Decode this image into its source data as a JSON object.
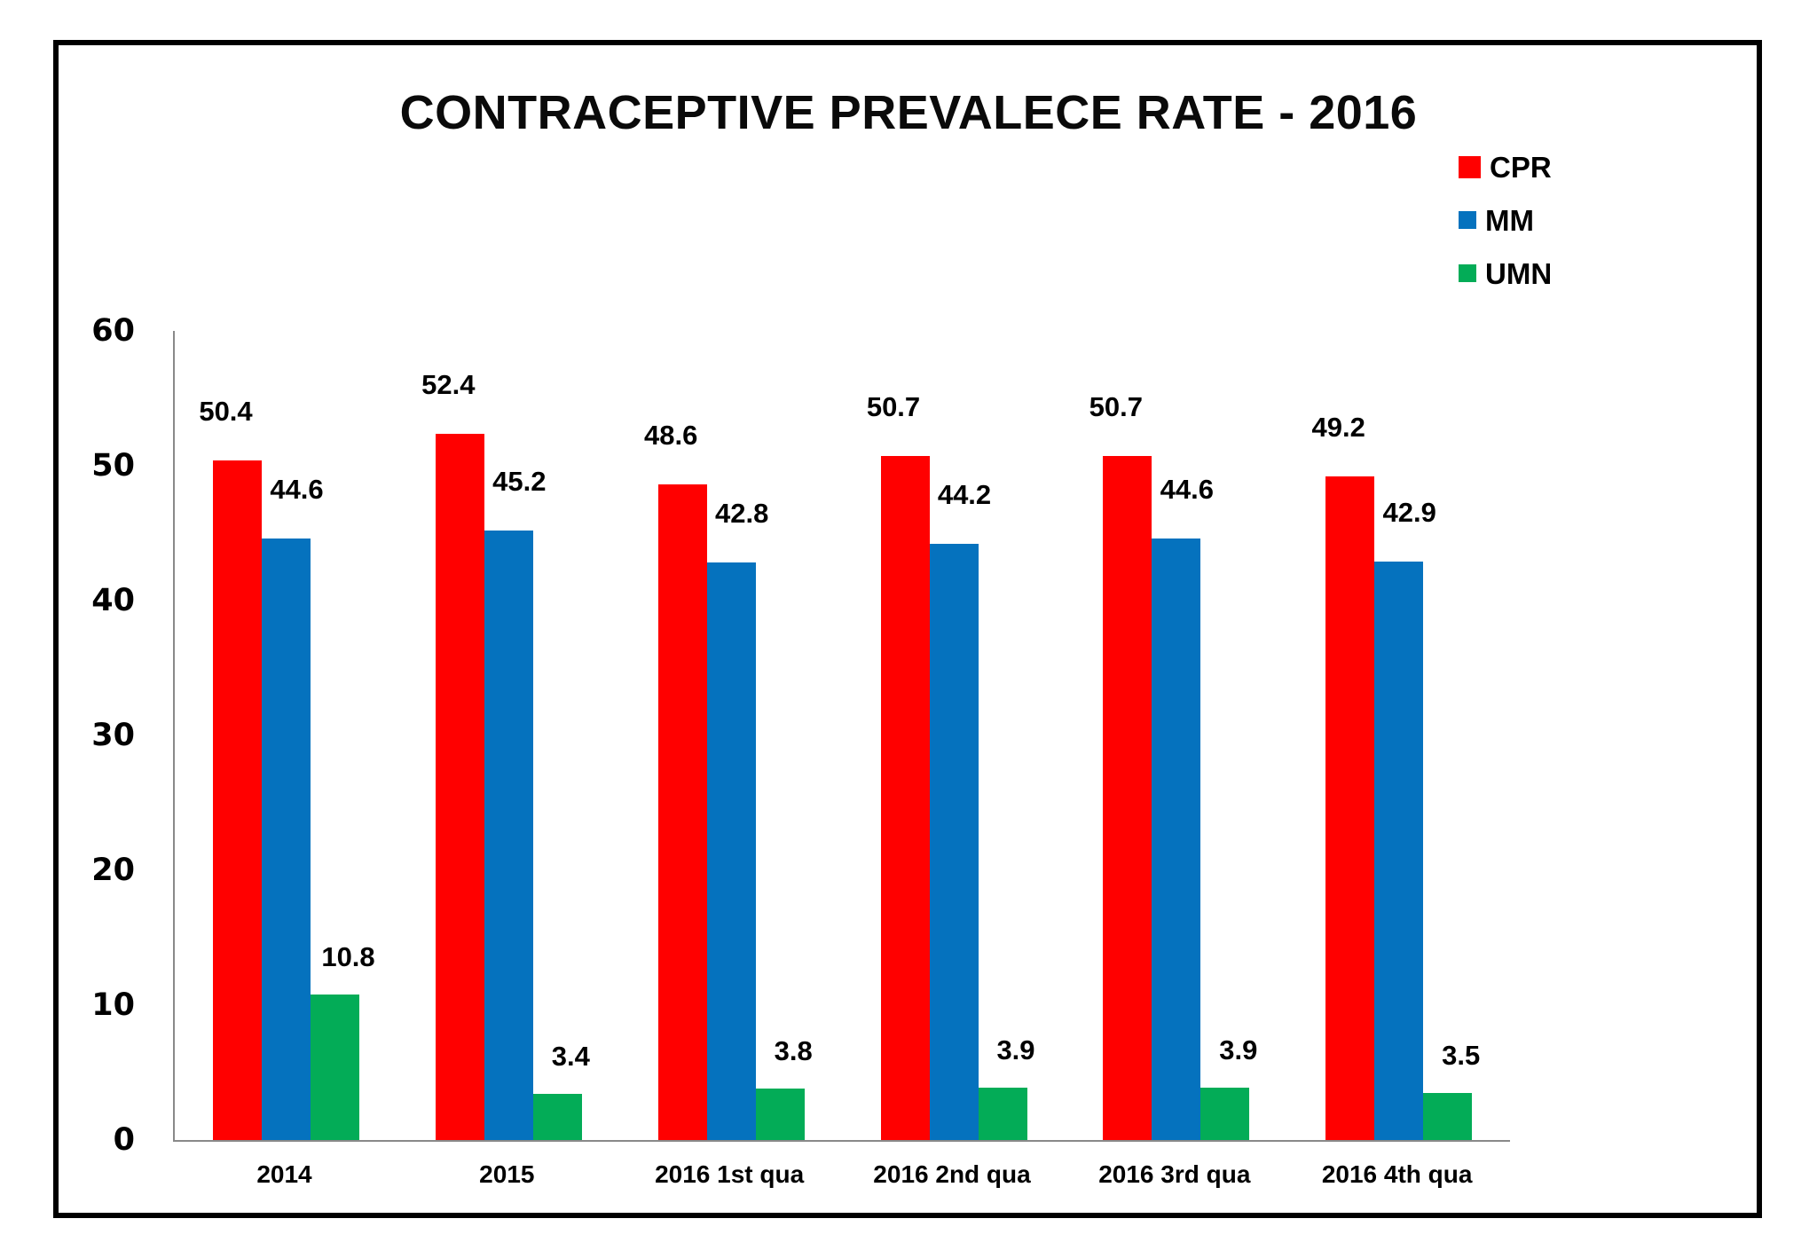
{
  "title": "CONTRACEPTIVE PREVALECE RATE - 2016",
  "chart_data": {
    "type": "bar",
    "title": "CONTRACEPTIVE PREVALECE RATE - 2016",
    "categories": [
      "2014",
      "2015",
      "2016 1st qua",
      "2016 2nd qua",
      "2016 3rd qua",
      "2016 4th qua"
    ],
    "series": [
      {
        "name": "CPR",
        "color": "#FF0000",
        "values": [
          50.4,
          52.4,
          48.6,
          50.7,
          50.7,
          49.2
        ]
      },
      {
        "name": "MM",
        "color": "#0572BE",
        "values": [
          44.6,
          45.2,
          42.8,
          44.2,
          44.6,
          42.9
        ]
      },
      {
        "name": "UMN",
        "color": "#03AC57",
        "values": [
          10.8,
          3.4,
          3.8,
          3.9,
          3.9,
          3.5
        ]
      }
    ],
    "ylim": [
      0,
      60
    ],
    "yticks": [
      0,
      10,
      20,
      30,
      40,
      50,
      60
    ],
    "grid": false,
    "data_labels": true,
    "legend_position": "top-right",
    "axis_color": "#898989",
    "text_color": "#000000",
    "background_color": "#FFFFFF"
  }
}
